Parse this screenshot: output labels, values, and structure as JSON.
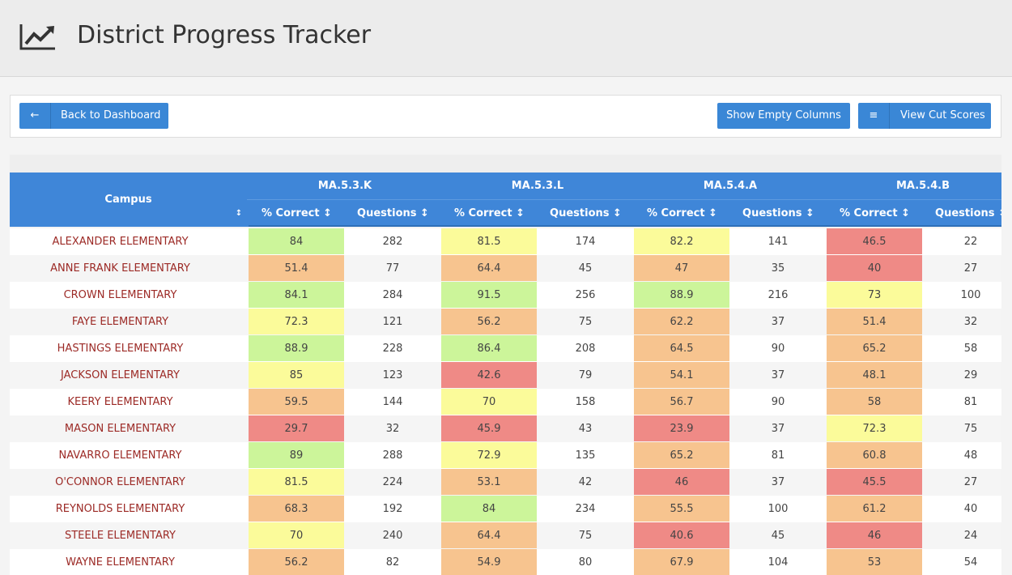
{
  "header": {
    "title": "District Progress Tracker"
  },
  "toolbar": {
    "back": "Back to Dashboard",
    "empty": "Show Empty Columns",
    "cuts": "View Cut Scores"
  },
  "table": {
    "campus_header": "Campus",
    "groups": [
      "MA.5.3.K",
      "MA.5.3.L",
      "MA.5.4.A",
      "MA.5.4.B"
    ],
    "subheaders": [
      "% Correct",
      "Questions",
      "% Correct",
      "Questions",
      "% Correct",
      "Questions",
      "% Correct",
      "Questions"
    ],
    "rows": [
      {
        "campus": "ALEXANDER ELEMENTARY",
        "values": [
          84,
          282,
          81.5,
          174,
          82.2,
          141,
          46.5,
          22
        ],
        "colors": [
          "#ccf59a",
          "#fbfb9a",
          "#fbfb9a",
          "#ef8a86"
        ]
      },
      {
        "campus": "ANNE FRANK ELEMENTARY",
        "values": [
          51.4,
          77,
          64.4,
          45,
          47,
          35,
          40,
          27
        ],
        "colors": [
          "#f7c48f",
          "#f7c48f",
          "#f7c48f",
          "#ef8a86"
        ]
      },
      {
        "campus": "CROWN ELEMENTARY",
        "values": [
          84.1,
          284,
          91.5,
          256,
          88.9,
          216,
          73,
          100
        ],
        "colors": [
          "#ccf59a",
          "#ccf59a",
          "#ccf59a",
          "#fbfb9a"
        ]
      },
      {
        "campus": "FAYE ELEMENTARY",
        "values": [
          72.3,
          121,
          56.2,
          75,
          62.2,
          37,
          51.4,
          32
        ],
        "colors": [
          "#fbfb9a",
          "#f7c48f",
          "#f7c48f",
          "#f7c48f"
        ]
      },
      {
        "campus": "HASTINGS ELEMENTARY",
        "values": [
          88.9,
          228,
          86.4,
          208,
          64.5,
          90,
          65.2,
          58
        ],
        "colors": [
          "#ccf59a",
          "#ccf59a",
          "#f7c48f",
          "#f7c48f"
        ]
      },
      {
        "campus": "JACKSON ELEMENTARY",
        "values": [
          85,
          123,
          42.6,
          79,
          54.1,
          37,
          48.1,
          29
        ],
        "colors": [
          "#fbfb9a",
          "#ef8a86",
          "#f7c48f",
          "#f7c48f"
        ]
      },
      {
        "campus": "KEERY ELEMENTARY",
        "values": [
          59.5,
          144,
          70,
          158,
          56.7,
          90,
          58,
          81
        ],
        "colors": [
          "#f7c48f",
          "#fbfb9a",
          "#f7c48f",
          "#f7c48f"
        ]
      },
      {
        "campus": "MASON ELEMENTARY",
        "values": [
          29.7,
          32,
          45.9,
          43,
          23.9,
          37,
          72.3,
          75
        ],
        "colors": [
          "#ef8a86",
          "#ef8a86",
          "#ef8a86",
          "#fbfb9a"
        ]
      },
      {
        "campus": "NAVARRO ELEMENTARY",
        "values": [
          89,
          288,
          72.9,
          135,
          65.2,
          81,
          60.8,
          48
        ],
        "colors": [
          "#ccf59a",
          "#fbfb9a",
          "#f7c48f",
          "#f7c48f"
        ]
      },
      {
        "campus": "O'CONNOR ELEMENTARY",
        "values": [
          81.5,
          224,
          53.1,
          42,
          46,
          37,
          45.5,
          27
        ],
        "colors": [
          "#fbfb9a",
          "#f7c48f",
          "#ef8a86",
          "#ef8a86"
        ]
      },
      {
        "campus": "REYNOLDS ELEMENTARY",
        "values": [
          68.3,
          192,
          84,
          234,
          55.5,
          100,
          61.2,
          40
        ],
        "colors": [
          "#f7c48f",
          "#ccf59a",
          "#f7c48f",
          "#f7c48f"
        ]
      },
      {
        "campus": "STEELE ELEMENTARY",
        "values": [
          70,
          240,
          64.4,
          75,
          40.6,
          45,
          46,
          24
        ],
        "colors": [
          "#fbfb9a",
          "#f7c48f",
          "#ef8a86",
          "#ef8a86"
        ]
      },
      {
        "campus": "WAYNE ELEMENTARY",
        "values": [
          56.2,
          82,
          54.9,
          80,
          67.9,
          104,
          53,
          54
        ],
        "colors": [
          "#f7c48f",
          "#f7c48f",
          "#f7c48f",
          "#f7c48f"
        ]
      }
    ]
  }
}
